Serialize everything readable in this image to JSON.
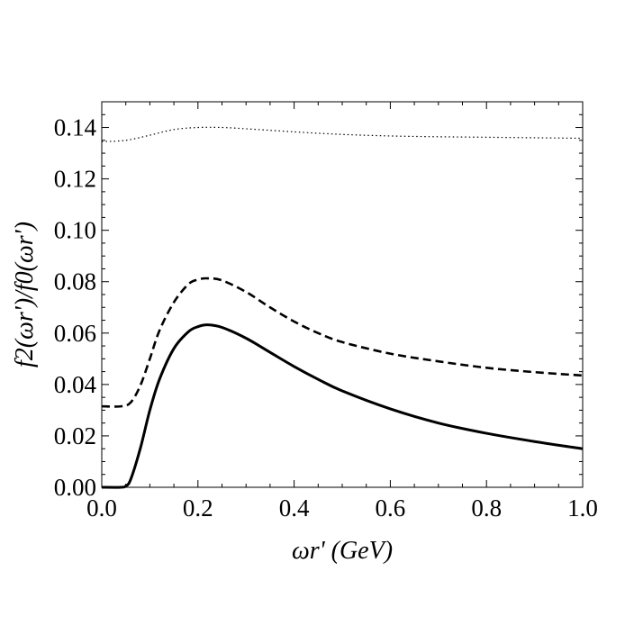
{
  "chart_data": {
    "type": "line",
    "title": "",
    "xlabel": "ωr' (GeV)",
    "ylabel": "f2(ωr')/f0(ωr')",
    "xlim": [
      0.0,
      1.0
    ],
    "ylim": [
      0.0,
      0.15
    ],
    "x_ticks": [
      "0.0",
      "0.2",
      "0.4",
      "0.6",
      "0.8",
      "1.0"
    ],
    "y_ticks": [
      "0.00",
      "0.02",
      "0.04",
      "0.06",
      "0.08",
      "0.10",
      "0.12",
      "0.14"
    ],
    "grid": false,
    "series": [
      {
        "name": "dotted",
        "style": "dotted",
        "x": [
          0.0,
          0.05,
          0.1,
          0.15,
          0.2,
          0.25,
          0.3,
          0.4,
          0.5,
          0.6,
          0.7,
          0.8,
          0.9,
          1.0
        ],
        "y": [
          0.1345,
          0.135,
          0.137,
          0.1392,
          0.14,
          0.14,
          0.1395,
          0.1383,
          0.1373,
          0.1367,
          0.1364,
          0.1362,
          0.136,
          0.1358
        ]
      },
      {
        "name": "dashed",
        "style": "dashed",
        "x": [
          0.0,
          0.04,
          0.06,
          0.08,
          0.1,
          0.12,
          0.15,
          0.18,
          0.2,
          0.22,
          0.25,
          0.3,
          0.35,
          0.4,
          0.45,
          0.5,
          0.6,
          0.7,
          0.8,
          0.9,
          1.0
        ],
        "y": [
          0.0315,
          0.0315,
          0.033,
          0.0395,
          0.05,
          0.061,
          0.072,
          0.079,
          0.0808,
          0.0813,
          0.0805,
          0.076,
          0.07,
          0.0645,
          0.06,
          0.0565,
          0.052,
          0.049,
          0.0465,
          0.0448,
          0.0435
        ]
      },
      {
        "name": "solid",
        "style": "solid",
        "x": [
          0.0,
          0.04,
          0.05,
          0.06,
          0.08,
          0.1,
          0.12,
          0.15,
          0.18,
          0.2,
          0.22,
          0.25,
          0.3,
          0.35,
          0.4,
          0.45,
          0.5,
          0.6,
          0.7,
          0.8,
          0.9,
          1.0
        ],
        "y": [
          0.0,
          0.0,
          0.0005,
          0.003,
          0.015,
          0.03,
          0.042,
          0.054,
          0.0605,
          0.0625,
          0.0632,
          0.0622,
          0.058,
          0.0525,
          0.047,
          0.042,
          0.0375,
          0.0305,
          0.025,
          0.021,
          0.0178,
          0.015
        ]
      }
    ]
  }
}
